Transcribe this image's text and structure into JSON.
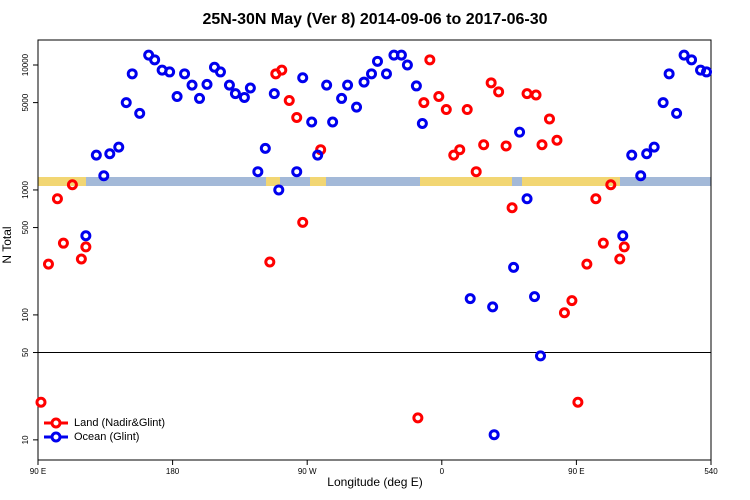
{
  "chart_data": {
    "type": "scatter",
    "title": "25N-30N May (Ver 8)   2014-09-06 to 2017-06-30",
    "x_label": "Longitude (deg E)",
    "y_label": "N Total",
    "log_y": true,
    "legend": "bottomleft",
    "xlim": [
      90,
      540
    ],
    "xticks": [
      {
        "value": 90,
        "label": "90 E"
      },
      180,
      {
        "value": 270,
        "label": "90 W"
      },
      {
        "value": 360,
        "label": "0"
      },
      {
        "value": 450,
        "label": "90 E"
      },
      540
    ],
    "ylim": [
      6.9,
      15850
    ],
    "yticks": [
      10,
      50,
      100,
      500,
      1000,
      5000,
      10000
    ],
    "hline": 50,
    "series": [
      {
        "name": "Land (Nadir&Glint)",
        "color": "#ff0000",
        "x": [
          92,
          97,
          103,
          107,
          113,
          119,
          122,
          245,
          249,
          253,
          258,
          263,
          267,
          279,
          344,
          348,
          352,
          358,
          363,
          368,
          372,
          377,
          383,
          388,
          393,
          398,
          403,
          407,
          417,
          423,
          427,
          432,
          437,
          442,
          447,
          451,
          457,
          463,
          468,
          473,
          479,
          482
        ],
        "values": [
          20,
          255,
          850,
          375,
          1100,
          280,
          350,
          265,
          8500,
          9100,
          5200,
          3800,
          550,
          2100,
          15,
          5000,
          11000,
          5600,
          4400,
          1900,
          2100,
          4400,
          1400,
          2300,
          7200,
          6100,
          2250,
          720,
          5900,
          5750,
          2300,
          3700,
          2500,
          104,
          130,
          20,
          255,
          850,
          375,
          1100,
          280,
          350
        ]
      },
      {
        "name": "Ocean (Glint)",
        "color": "#0000ee",
        "x": [
          122,
          129,
          134,
          138,
          144,
          149,
          153,
          158,
          164,
          168,
          173,
          178,
          183,
          188,
          193,
          198,
          203,
          208,
          212,
          218,
          222,
          228,
          232,
          237,
          242,
          248,
          251,
          263,
          267,
          273,
          277,
          283,
          287,
          293,
          297,
          303,
          308,
          313,
          317,
          323,
          328,
          333,
          337,
          343,
          347,
          379,
          394,
          395,
          408,
          412,
          417,
          422,
          426,
          481,
          487,
          493,
          497,
          502,
          508,
          512,
          517,
          522,
          527,
          533,
          537
        ],
        "values": [
          430,
          1900,
          1300,
          1950,
          2200,
          5000,
          8500,
          4100,
          12000,
          11000,
          9100,
          8800,
          5600,
          8500,
          6900,
          5400,
          7000,
          9600,
          8800,
          6900,
          5900,
          5500,
          6550,
          1400,
          2150,
          5900,
          1000,
          1400,
          7900,
          3500,
          1900,
          6900,
          3500,
          5400,
          6900,
          4600,
          7300,
          8500,
          10700,
          8500,
          12000,
          12000,
          10000,
          6800,
          3400,
          135,
          116,
          11,
          240,
          2900,
          850,
          140,
          47,
          430,
          1900,
          1300,
          1950,
          2200,
          5000,
          8500,
          4100,
          12000,
          11000,
          9100,
          8800
        ]
      }
    ]
  }
}
